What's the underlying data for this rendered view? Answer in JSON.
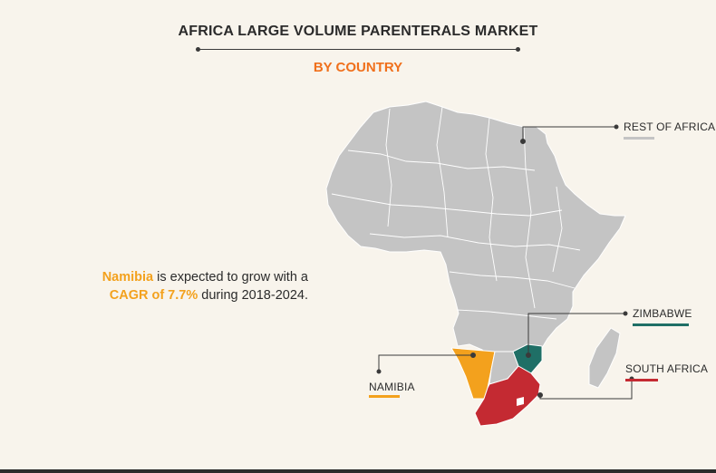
{
  "header": {
    "title": "AFRICA LARGE VOLUME PARENTERALS MARKET",
    "subtitle": "BY COUNTRY"
  },
  "insight": {
    "country": "Namibia",
    "text_mid": " is expected to grow with a",
    "cagr": "CAGR of 7.7%",
    "text_end": " during 2018-2024."
  },
  "legend": {
    "rest_of_africa": "REST OF AFRICA",
    "zimbabwe": "ZIMBABWE",
    "south_africa": "SOUTH AFRICA",
    "namibia": "NAMIBIA"
  },
  "colors": {
    "accent_orange": "#f0701c",
    "rest_of_africa": "#c4c4c4",
    "zimbabwe": "#1f6f66",
    "south_africa": "#c42a32",
    "namibia": "#f3a11d",
    "map_border": "#ffffff"
  }
}
